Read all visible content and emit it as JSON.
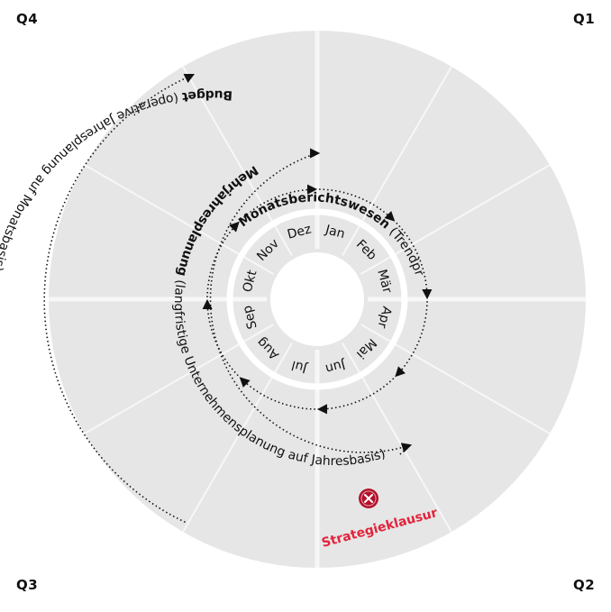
{
  "quadrants": {
    "q1": "Q1",
    "q2": "Q2",
    "q3": "Q3",
    "q4": "Q4"
  },
  "months": [
    "Jan",
    "Feb",
    "Mär",
    "Apr",
    "Mai",
    "Jun",
    "Jul",
    "Aug",
    "Sep",
    "Okt",
    "Nov",
    "Dez"
  ],
  "cycles": {
    "monthly": {
      "bold": "Monatsberichtswesen",
      "rest": " (Trendprognosen)"
    },
    "multiyear": {
      "bold": "Mehrjahresplanung",
      "rest": " (langfristige Unternehmensplanung auf Jahresbasis)"
    },
    "budget": {
      "bold": "Budget",
      "rest": " (operative Jahresplanung auf Monatsbasis)"
    }
  },
  "event": {
    "label": "Strategieklausur",
    "icon": "close-icon"
  },
  "colors": {
    "disk": "#e6e6e6",
    "spokes": "#f5f5f5",
    "ink": "#111111",
    "accent": "#e2233b",
    "marker": "#b3122b"
  }
}
